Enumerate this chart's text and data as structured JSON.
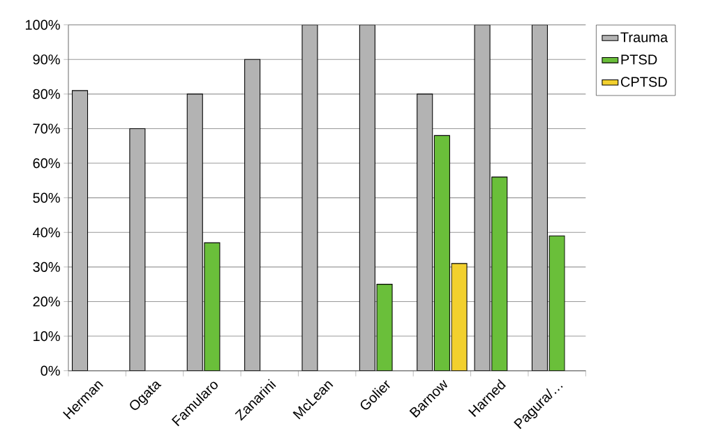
{
  "chart_data": {
    "type": "bar",
    "categories": [
      "Herman",
      "Ogata",
      "Famularo",
      "Zanarini",
      "McLean",
      "Golier",
      "Barnow",
      "Harned",
      "Pagura/…"
    ],
    "series": [
      {
        "name": "Trauma",
        "color": "#b3b3b3",
        "values": [
          81,
          70,
          80,
          90,
          100,
          100,
          80,
          100,
          100
        ]
      },
      {
        "name": "PTSD",
        "color": "#6abf3a",
        "values": [
          null,
          null,
          37,
          null,
          null,
          25,
          68,
          56,
          39
        ]
      },
      {
        "name": "CPTSD",
        "color": "#f2d02e",
        "values": [
          null,
          null,
          null,
          null,
          null,
          null,
          31,
          null,
          null
        ]
      }
    ],
    "ylim": [
      0,
      100
    ],
    "yticks": [
      {
        "value": 0,
        "label": "0%"
      },
      {
        "value": 10,
        "label": "10%"
      },
      {
        "value": 20,
        "label": "20%"
      },
      {
        "value": 30,
        "label": "30%"
      },
      {
        "value": 40,
        "label": "40%"
      },
      {
        "value": 50,
        "label": "50%"
      },
      {
        "value": 60,
        "label": "60%"
      },
      {
        "value": 70,
        "label": "70%"
      },
      {
        "value": 80,
        "label": "80%"
      },
      {
        "value": 90,
        "label": "90%"
      },
      {
        "value": 100,
        "label": "100%"
      }
    ],
    "grid": "y",
    "legend": "right"
  }
}
